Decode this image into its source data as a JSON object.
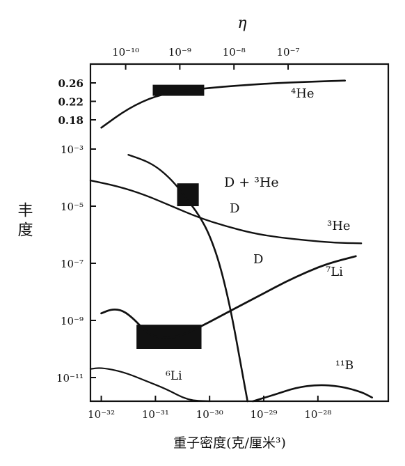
{
  "chart_data": {
    "type": "line",
    "top_axis": {
      "label": "η",
      "tick_labels": [
        "10⁻¹⁰",
        "10⁻⁹",
        "10⁻⁸",
        "10⁻⁷"
      ],
      "tick_log_eta": [
        -10,
        -9,
        -8,
        -7
      ]
    },
    "x_axis": {
      "label": "重子密度(克/厘米³)",
      "scale": "log",
      "tick_labels": [
        "10⁻³²",
        "10⁻³¹",
        "10⁻³⁰",
        "10⁻²⁹",
        "10⁻²⁸"
      ],
      "tick_log_values": [
        -32,
        -31,
        -30,
        -29,
        -28
      ],
      "range_log": [
        -32.2,
        -26.7
      ]
    },
    "y_axis": {
      "label": "丰度",
      "linear_tick_labels": [
        "0.26",
        "0.22",
        "0.18"
      ],
      "linear_tick_values": [
        0.26,
        0.22,
        0.18
      ],
      "log_tick_labels": [
        "10⁻³",
        "10⁻⁵",
        "10⁻⁷",
        "10⁻⁹",
        "10⁻¹¹"
      ],
      "log_tick_values": [
        -3,
        -5,
        -7,
        -9,
        -11
      ]
    },
    "series": [
      {
        "name": "⁴He",
        "log_x": [
          -32.0,
          -31.5,
          -31.0,
          -30.5,
          -30.0,
          -29.5,
          -29.0,
          -28.5,
          -28.0,
          -27.5
        ],
        "y": [
          0.163,
          0.205,
          0.232,
          0.243,
          0.249,
          0.254,
          0.258,
          0.261,
          0.263,
          0.265
        ]
      },
      {
        "name": "D + ³He",
        "log_x": [
          -31.5,
          -31.2,
          -31.0,
          -30.8,
          -30.6,
          -30.4
        ],
        "log_y": [
          -3.2,
          -3.4,
          -3.6,
          -3.9,
          -4.3,
          -4.8
        ]
      },
      {
        "name": "D",
        "log_x": [
          -30.4,
          -30.2,
          -30.0,
          -29.8,
          -29.6,
          -29.4,
          -29.3
        ],
        "log_y": [
          -4.8,
          -5.3,
          -6.0,
          -7.1,
          -8.7,
          -10.8,
          -12.0
        ]
      },
      {
        "name": "³He",
        "log_x": [
          -32.2,
          -31.7,
          -31.2,
          -30.7,
          -30.2,
          -29.7,
          -29.2,
          -28.7,
          -28.2,
          -27.7,
          -27.2
        ],
        "log_y": [
          -4.1,
          -4.3,
          -4.6,
          -5.0,
          -5.4,
          -5.7,
          -5.95,
          -6.1,
          -6.2,
          -6.28,
          -6.3
        ]
      },
      {
        "name": "⁷Li",
        "log_x": [
          -32.0,
          -31.8,
          -31.6,
          -31.4,
          -31.2,
          -31.0,
          -30.6,
          -30.2,
          -29.8,
          -29.4,
          -29.0,
          -28.6,
          -28.2,
          -27.8,
          -27.3
        ],
        "log_y": [
          -8.75,
          -8.6,
          -8.65,
          -8.95,
          -9.35,
          -9.6,
          -9.6,
          -9.25,
          -8.85,
          -8.45,
          -8.05,
          -7.65,
          -7.3,
          -7.0,
          -6.75
        ]
      },
      {
        "name": "⁶Li",
        "log_x": [
          -32.2,
          -32.0,
          -31.6,
          -31.2,
          -30.8,
          -30.4,
          -30.0
        ],
        "log_y": [
          -10.7,
          -10.65,
          -10.8,
          -11.1,
          -11.4,
          -11.8,
          -12.0
        ]
      },
      {
        "name": "¹¹B",
        "log_x": [
          -29.2,
          -28.8,
          -28.4,
          -28.0,
          -27.6,
          -27.2,
          -27.0
        ],
        "log_y": [
          -12.0,
          -11.6,
          -11.35,
          -11.25,
          -11.3,
          -11.5,
          -11.7
        ]
      }
    ],
    "observed_boxes": [
      {
        "name": "⁴He",
        "log_x": [
          -31.05,
          -30.1
        ],
        "y": [
          0.232,
          0.256
        ]
      },
      {
        "name": "D + ³He",
        "log_x": [
          -30.6,
          -30.2
        ],
        "log_y": [
          -4.2,
          -5.0
        ]
      },
      {
        "name": "⁷Li",
        "log_x": [
          -31.35,
          -30.15
        ],
        "log_y": [
          -9.15,
          -10.0
        ]
      }
    ],
    "annotations": [
      "⁴He",
      "D + ³He",
      "D",
      "D",
      "³He",
      "⁷Li",
      "⁶Li",
      "¹¹B"
    ]
  }
}
